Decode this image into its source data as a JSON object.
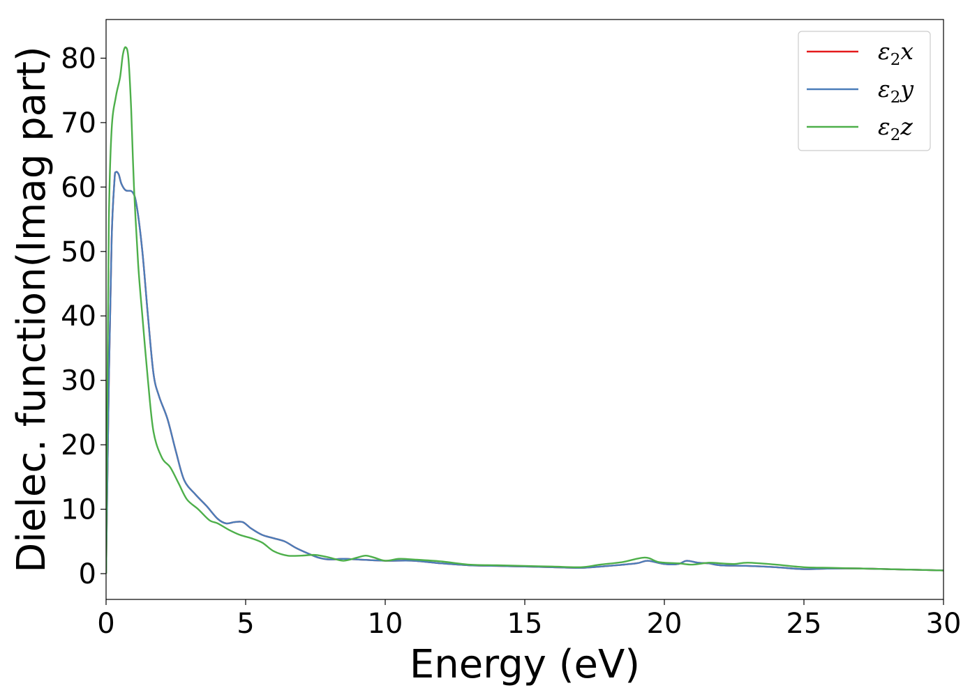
{
  "chart_data": {
    "type": "line",
    "title": "",
    "xlabel": "Energy (eV)",
    "ylabel": "Dielec. function(Imag part)",
    "xlim": [
      0,
      30
    ],
    "ylim": [
      -4,
      86
    ],
    "xticks": [
      0,
      5,
      10,
      15,
      20,
      25,
      30
    ],
    "yticks": [
      0,
      10,
      20,
      30,
      40,
      50,
      60,
      70,
      80
    ],
    "grid": false,
    "legend_position": "top-right",
    "series": [
      {
        "name": "ε₂x",
        "label_base": "ε",
        "label_sub": "2",
        "label_suffix": "x",
        "color": "#e41a1c",
        "points": [
          [
            0,
            0
          ],
          [
            0.1,
            30
          ],
          [
            0.2,
            52
          ],
          [
            0.3,
            61
          ],
          [
            0.35,
            62.3
          ],
          [
            0.45,
            62
          ],
          [
            0.55,
            60.5
          ],
          [
            0.7,
            59.5
          ],
          [
            0.95,
            59.2
          ],
          [
            1.1,
            57
          ],
          [
            1.3,
            50
          ],
          [
            1.5,
            40
          ],
          [
            1.7,
            31
          ],
          [
            1.9,
            27.5
          ],
          [
            2.2,
            24
          ],
          [
            2.5,
            19
          ],
          [
            2.8,
            14.5
          ],
          [
            3.2,
            12.3
          ],
          [
            3.6,
            10.5
          ],
          [
            4.0,
            8.5
          ],
          [
            4.3,
            7.8
          ],
          [
            4.6,
            8.0
          ],
          [
            4.9,
            8.0
          ],
          [
            5.2,
            7.0
          ],
          [
            5.6,
            6.0
          ],
          [
            6.0,
            5.5
          ],
          [
            6.4,
            5.0
          ],
          [
            6.8,
            4.0
          ],
          [
            7.2,
            3.2
          ],
          [
            7.6,
            2.5
          ],
          [
            8.0,
            2.2
          ],
          [
            8.5,
            2.3
          ],
          [
            9.0,
            2.2
          ],
          [
            10,
            2.0
          ],
          [
            11,
            2.0
          ],
          [
            12,
            1.6
          ],
          [
            13,
            1.3
          ],
          [
            14,
            1.2
          ],
          [
            15,
            1.1
          ],
          [
            16,
            1.0
          ],
          [
            17,
            0.9
          ],
          [
            18,
            1.2
          ],
          [
            19,
            1.6
          ],
          [
            19.4,
            2.0
          ],
          [
            20,
            1.5
          ],
          [
            20.5,
            1.5
          ],
          [
            20.8,
            2.0
          ],
          [
            21.2,
            1.7
          ],
          [
            21.6,
            1.6
          ],
          [
            22,
            1.3
          ],
          [
            23,
            1.2
          ],
          [
            24,
            1.0
          ],
          [
            25,
            0.7
          ],
          [
            26,
            0.8
          ],
          [
            27,
            0.8
          ],
          [
            28,
            0.7
          ],
          [
            29,
            0.6
          ],
          [
            30,
            0.5
          ]
        ]
      },
      {
        "name": "ε₂y",
        "label_base": "ε",
        "label_sub": "2",
        "label_suffix": "y",
        "color": "#4a7db9",
        "points": [
          [
            0,
            0
          ],
          [
            0.1,
            30
          ],
          [
            0.2,
            52
          ],
          [
            0.3,
            61
          ],
          [
            0.35,
            62.3
          ],
          [
            0.45,
            62
          ],
          [
            0.55,
            60.5
          ],
          [
            0.7,
            59.5
          ],
          [
            0.95,
            59.2
          ],
          [
            1.1,
            57
          ],
          [
            1.3,
            50
          ],
          [
            1.5,
            40
          ],
          [
            1.7,
            31
          ],
          [
            1.9,
            27.5
          ],
          [
            2.2,
            24
          ],
          [
            2.5,
            19
          ],
          [
            2.8,
            14.5
          ],
          [
            3.2,
            12.3
          ],
          [
            3.6,
            10.5
          ],
          [
            4.0,
            8.5
          ],
          [
            4.3,
            7.8
          ],
          [
            4.6,
            8.0
          ],
          [
            4.9,
            8.0
          ],
          [
            5.2,
            7.0
          ],
          [
            5.6,
            6.0
          ],
          [
            6.0,
            5.5
          ],
          [
            6.4,
            5.0
          ],
          [
            6.8,
            4.0
          ],
          [
            7.2,
            3.2
          ],
          [
            7.6,
            2.5
          ],
          [
            8.0,
            2.2
          ],
          [
            8.5,
            2.3
          ],
          [
            9.0,
            2.2
          ],
          [
            10,
            2.0
          ],
          [
            11,
            2.0
          ],
          [
            12,
            1.6
          ],
          [
            13,
            1.3
          ],
          [
            14,
            1.2
          ],
          [
            15,
            1.1
          ],
          [
            16,
            1.0
          ],
          [
            17,
            0.9
          ],
          [
            18,
            1.2
          ],
          [
            19,
            1.6
          ],
          [
            19.4,
            2.0
          ],
          [
            20,
            1.5
          ],
          [
            20.5,
            1.5
          ],
          [
            20.8,
            2.0
          ],
          [
            21.2,
            1.7
          ],
          [
            21.6,
            1.6
          ],
          [
            22,
            1.3
          ],
          [
            23,
            1.2
          ],
          [
            24,
            1.0
          ],
          [
            25,
            0.7
          ],
          [
            26,
            0.8
          ],
          [
            27,
            0.8
          ],
          [
            28,
            0.7
          ],
          [
            29,
            0.6
          ],
          [
            30,
            0.5
          ]
        ]
      },
      {
        "name": "ε₂z",
        "label_base": "ε",
        "label_sub": "2",
        "label_suffix": "z",
        "color": "#4daf4a",
        "points": [
          [
            0,
            0
          ],
          [
            0.05,
            30
          ],
          [
            0.1,
            55
          ],
          [
            0.2,
            69
          ],
          [
            0.35,
            74
          ],
          [
            0.5,
            77
          ],
          [
            0.6,
            80.5
          ],
          [
            0.7,
            81.7
          ],
          [
            0.8,
            80
          ],
          [
            0.9,
            72
          ],
          [
            1.0,
            60
          ],
          [
            1.15,
            48
          ],
          [
            1.3,
            40
          ],
          [
            1.5,
            30
          ],
          [
            1.7,
            22
          ],
          [
            2.0,
            18
          ],
          [
            2.3,
            16.5
          ],
          [
            2.6,
            14
          ],
          [
            2.9,
            11.5
          ],
          [
            3.3,
            10
          ],
          [
            3.7,
            8.3
          ],
          [
            4.0,
            7.8
          ],
          [
            4.4,
            6.8
          ],
          [
            4.8,
            6.0
          ],
          [
            5.2,
            5.5
          ],
          [
            5.6,
            4.8
          ],
          [
            6.0,
            3.5
          ],
          [
            6.5,
            2.8
          ],
          [
            7.0,
            2.8
          ],
          [
            7.5,
            2.9
          ],
          [
            8.0,
            2.5
          ],
          [
            8.5,
            2.0
          ],
          [
            9.0,
            2.5
          ],
          [
            9.3,
            2.8
          ],
          [
            9.6,
            2.5
          ],
          [
            10,
            2.0
          ],
          [
            10.5,
            2.3
          ],
          [
            11,
            2.2
          ],
          [
            12,
            1.9
          ],
          [
            13,
            1.4
          ],
          [
            14,
            1.3
          ],
          [
            15,
            1.2
          ],
          [
            16,
            1.1
          ],
          [
            17,
            1.0
          ],
          [
            17.7,
            1.4
          ],
          [
            18.5,
            1.8
          ],
          [
            19.3,
            2.5
          ],
          [
            19.8,
            1.8
          ],
          [
            20.5,
            1.6
          ],
          [
            21,
            1.4
          ],
          [
            21.6,
            1.7
          ],
          [
            22,
            1.6
          ],
          [
            22.5,
            1.5
          ],
          [
            23,
            1.7
          ],
          [
            24,
            1.4
          ],
          [
            25,
            1.0
          ],
          [
            26,
            0.9
          ],
          [
            27,
            0.8
          ],
          [
            28,
            0.7
          ],
          [
            29,
            0.6
          ],
          [
            30,
            0.5
          ]
        ]
      }
    ]
  }
}
